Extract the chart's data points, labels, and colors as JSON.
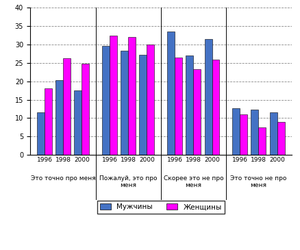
{
  "groups": [
    {
      "label": "Это точно про меня",
      "years": [
        "1996",
        "1998",
        "2000"
      ],
      "men": [
        11.5,
        20.3,
        17.5
      ],
      "women": [
        18.0,
        26.3,
        24.7
      ]
    },
    {
      "label": "Пожалуй, это про\nменя",
      "years": [
        "1996",
        "1998",
        "2000"
      ],
      "men": [
        29.5,
        28.3,
        27.2
      ],
      "women": [
        32.3,
        32.0,
        30.0
      ]
    },
    {
      "label": "Скорее это не про\nменя",
      "years": [
        "1996",
        "1998",
        "2000"
      ],
      "men": [
        33.5,
        27.0,
        31.5
      ],
      "women": [
        26.5,
        23.2,
        25.8
      ]
    },
    {
      "label": "Это точно не про\nменя",
      "years": [
        "1996",
        "1998",
        "2000"
      ],
      "men": [
        12.7,
        12.4,
        11.5
      ],
      "women": [
        11.0,
        7.5,
        9.0
      ]
    }
  ],
  "color_men": "#4472C4",
  "color_women": "#FF00FF",
  "ylim": [
    0,
    40
  ],
  "yticks": [
    0,
    5,
    10,
    15,
    20,
    25,
    30,
    35,
    40
  ],
  "legend_men": "Мужчины",
  "legend_women": "Женщины",
  "bg_color": "#FFFFFF"
}
